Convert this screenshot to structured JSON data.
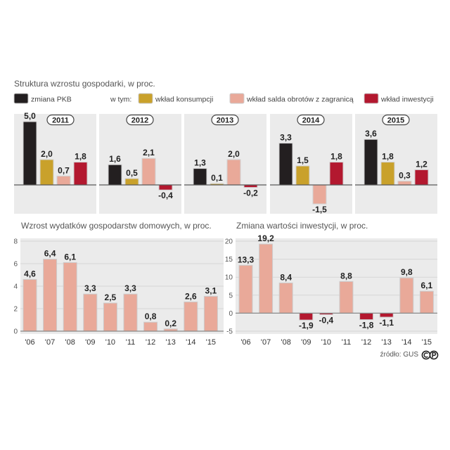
{
  "chart_data": [
    {
      "type": "bar",
      "title": "Struktura wzrostu gospodarki, w proc.",
      "legend_prefix": "w tym:",
      "categories": [
        "2011",
        "2012",
        "2013",
        "2014",
        "2015"
      ],
      "series": [
        {
          "name": "zmiana PKB",
          "color": "#231f20",
          "values": [
            5.0,
            1.6,
            1.3,
            3.3,
            3.6
          ],
          "labels": [
            "5,0",
            "1,6",
            "1,3",
            "3,3",
            "3,6"
          ]
        },
        {
          "name": "wkład konsumpcji",
          "color": "#c9a12b",
          "values": [
            2.0,
            0.5,
            0.1,
            1.5,
            1.8
          ],
          "labels": [
            "2,0",
            "0,5",
            "0,1",
            "1,5",
            "1,8"
          ]
        },
        {
          "name": "wkład salda obrotów z zagranicą",
          "color": "#e9a999",
          "values": [
            0.7,
            2.1,
            2.0,
            -1.5,
            0.3
          ],
          "labels": [
            "0,7",
            "2,1",
            "2,0",
            "-1,5",
            "0,3"
          ]
        },
        {
          "name": "wkład inwestycji",
          "color": "#b3182f",
          "values": [
            1.8,
            -0.4,
            -0.2,
            1.8,
            1.2
          ],
          "labels": [
            "1,8",
            "-0,4",
            "-0,2",
            "1,8",
            "1,2"
          ]
        }
      ]
    },
    {
      "type": "bar",
      "title": "Wzrost wydatków gospodarstw domowych, w proc.",
      "categories": [
        "'06",
        "'07",
        "'08",
        "'09",
        "'10",
        "'11",
        "'12",
        "'13",
        "'14",
        "'15"
      ],
      "values": [
        4.6,
        6.4,
        6.1,
        3.3,
        2.5,
        3.3,
        0.8,
        0.2,
        2.6,
        3.1
      ],
      "labels": [
        "4,6",
        "6,4",
        "6,1",
        "3,3",
        "2,5",
        "3,3",
        "0,8",
        "0,2",
        "2,6",
        "3,1"
      ],
      "ylim": [
        0,
        8
      ],
      "yticks": [
        8,
        6,
        4,
        2,
        0
      ],
      "color": "#e9a999"
    },
    {
      "type": "bar",
      "title": "Zmiana wartości inwestycji, w proc.",
      "categories": [
        "'06",
        "'07",
        "'08",
        "'09",
        "'10",
        "'11",
        "'12",
        "'13",
        "'14",
        "'15"
      ],
      "values": [
        13.3,
        19.2,
        8.4,
        -1.9,
        -0.4,
        8.8,
        -1.8,
        -1.1,
        9.8,
        6.1
      ],
      "labels": [
        "13,3",
        "19,2",
        "8,4",
        "-1,9",
        "-0,4",
        "8,8",
        "-1,8",
        "-1,1",
        "9,8",
        "6,1"
      ],
      "ylim": [
        -5,
        20
      ],
      "yticks": [
        20,
        15,
        10,
        5,
        0,
        -5
      ],
      "color": "#e9a999",
      "negative_color": "#b3182f"
    }
  ],
  "footer": {
    "source": "źródło: GUS",
    "logo_icon": "pap-logo"
  }
}
